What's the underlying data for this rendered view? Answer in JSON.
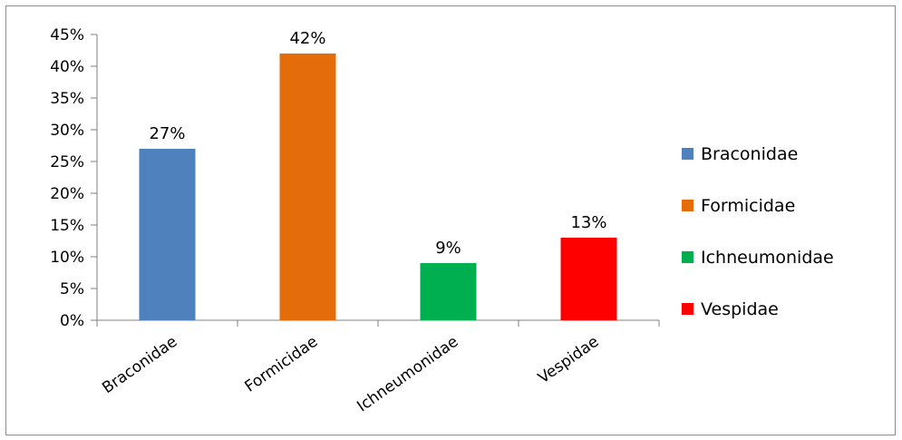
{
  "chart_data": {
    "type": "bar",
    "categories": [
      "Braconidae",
      "Formicidae",
      "Ichneumonidae",
      "Vespidae"
    ],
    "values": [
      27,
      42,
      9,
      13
    ],
    "value_labels": [
      "27%",
      "42%",
      "9%",
      "13%"
    ],
    "colors": [
      "#4f81bd",
      "#e46c0a",
      "#00b050",
      "#ff0000"
    ],
    "ylim": [
      0,
      45
    ],
    "yticks": [
      0,
      5,
      10,
      15,
      20,
      25,
      30,
      35,
      40,
      45
    ],
    "ytick_labels": [
      "0%",
      "5%",
      "10%",
      "15%",
      "20%",
      "25%",
      "30%",
      "35%",
      "40%",
      "45%"
    ],
    "grid": false,
    "legend": {
      "placement": "right",
      "entries": [
        "Braconidae",
        "Formicidae",
        "Ichneumonidae",
        "Vespidae"
      ]
    }
  }
}
